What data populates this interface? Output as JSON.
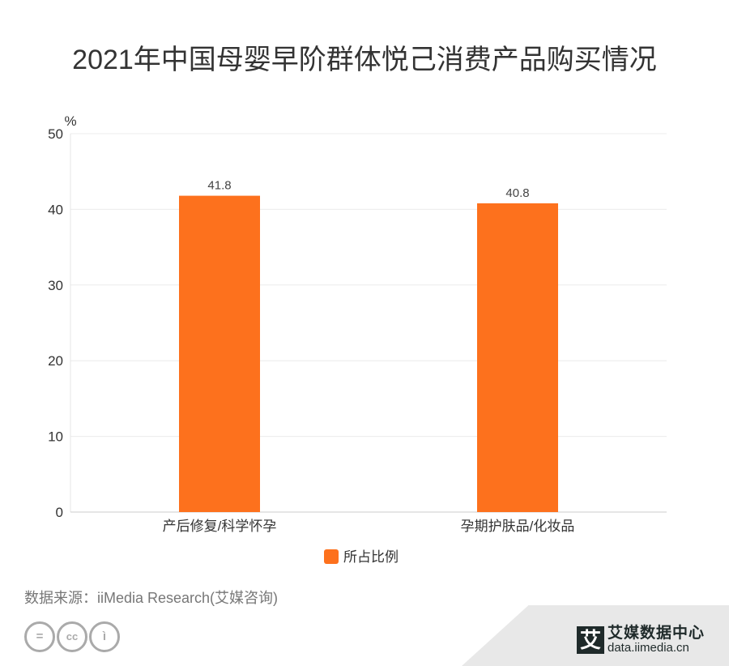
{
  "title": "2021年中国母婴早阶群体悦己消费产品购买情况",
  "chart_data": {
    "type": "bar",
    "title": "2021年中国母婴早阶群体悦己消费产品购买情况",
    "categories": [
      "产后修复/科学怀孕",
      "孕期护肤品/化妆品"
    ],
    "series": [
      {
        "name": "所占比例",
        "values": [
          41.8,
          40.8
        ],
        "color": "#fd711d"
      }
    ],
    "ylabel": "%",
    "ylim": [
      0,
      50
    ],
    "yticks": [
      0,
      10,
      20,
      30,
      40,
      50
    ],
    "grid": true,
    "legend": "bottom-center"
  },
  "source": "数据来源：iiMedia Research(艾媒咨询)",
  "logo": {
    "mark": "艾",
    "name": "艾媒数据中心",
    "url": "data.iimedia.cn"
  }
}
